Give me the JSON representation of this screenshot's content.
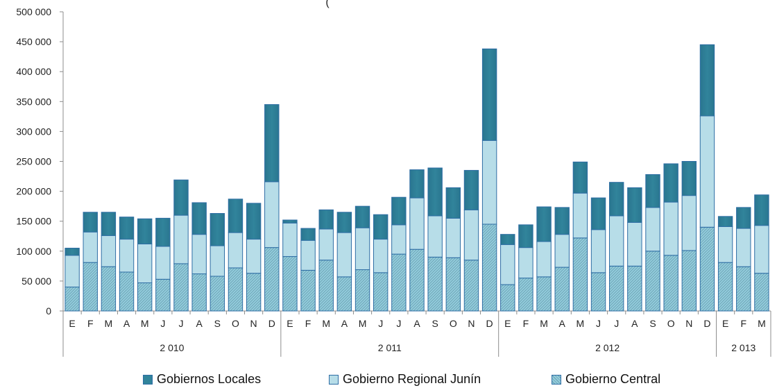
{
  "colors": {
    "locales": "#31849b",
    "regional": "#b7dde8",
    "central": "#93cddd",
    "edge": "#2e6da4",
    "axis": "#8c8c8c"
  },
  "chart_data": {
    "type": "bar",
    "stacked": true,
    "title": "(",
    "ylim": [
      0,
      500000
    ],
    "yticks": [
      0,
      50000,
      100000,
      150000,
      200000,
      250000,
      300000,
      350000,
      400000,
      450000,
      500000
    ],
    "ytick_labels": [
      "0",
      "50 000",
      "100 000",
      "150 000",
      "200 000",
      "250 000",
      "300 000",
      "350 000",
      "400 000",
      "450 000",
      "500 000"
    ],
    "categories": [
      "E",
      "F",
      "M",
      "A",
      "M",
      "J",
      "J",
      "A",
      "S",
      "O",
      "N",
      "D",
      "E",
      "F",
      "M",
      "A",
      "M",
      "J",
      "J",
      "A",
      "S",
      "O",
      "N",
      "D",
      "E",
      "F",
      "M",
      "A",
      "M",
      "J",
      "J",
      "A",
      "S",
      "O",
      "N",
      "D",
      "E",
      "F",
      "M"
    ],
    "groups": [
      {
        "label": "2 010",
        "count": 12
      },
      {
        "label": "2 011",
        "count": 12
      },
      {
        "label": "2 012",
        "count": 12
      },
      {
        "label": "2 013",
        "count": 3
      }
    ],
    "series": [
      {
        "name": "Gobierno Central",
        "values": [
          40000,
          81000,
          74000,
          65000,
          47000,
          53000,
          79000,
          62000,
          58000,
          72000,
          63000,
          106000,
          91000,
          68000,
          85000,
          57000,
          69000,
          64000,
          95000,
          103000,
          90000,
          89000,
          85000,
          145000,
          44000,
          55000,
          57000,
          73000,
          122000,
          64000,
          75000,
          75000,
          100000,
          93000,
          101000,
          140000,
          81000,
          74000,
          63000
        ]
      },
      {
        "name": "Gobierno Regional Junín",
        "values": [
          53000,
          51000,
          52000,
          55000,
          65000,
          55000,
          81000,
          66000,
          51000,
          59000,
          57000,
          110000,
          56000,
          50000,
          52000,
          74000,
          70000,
          56000,
          49000,
          86000,
          69000,
          66000,
          84000,
          140000,
          67000,
          51000,
          59000,
          55000,
          75000,
          72000,
          84000,
          73000,
          73000,
          89000,
          92000,
          186000,
          60000,
          64000,
          80000
        ]
      },
      {
        "name": "Gobiernos Locales",
        "values": [
          12000,
          33000,
          39000,
          37000,
          42000,
          47000,
          59000,
          53000,
          54000,
          56000,
          60000,
          129000,
          5000,
          20000,
          32000,
          34000,
          36000,
          41000,
          46000,
          47000,
          80000,
          51000,
          66000,
          153000,
          17000,
          38000,
          58000,
          45000,
          52000,
          53000,
          56000,
          58000,
          55000,
          64000,
          57000,
          119000,
          17000,
          35000,
          51000
        ]
      }
    ],
    "legend_order": [
      "Gobiernos Locales",
      "Gobierno Regional Junín",
      "Gobierno Central"
    ],
    "legend_position": "bottom"
  }
}
